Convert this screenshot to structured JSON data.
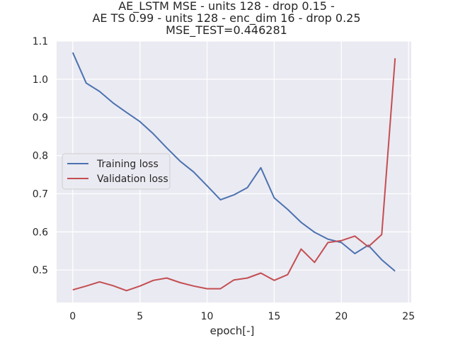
{
  "chart_data": {
    "type": "line",
    "title_lines": [
      "AE_LSTM MSE - units 128 - drop 0.15 -",
      "AE TS 0.99 - units 128 - enc_dim 16 - drop 0.25",
      "MSE_TEST=0.446281"
    ],
    "xlabel": "epoch[-]",
    "ylabel": "",
    "xlim": [
      -1.2,
      25.2
    ],
    "ylim": [
      0.415,
      1.1
    ],
    "xticks": [
      0,
      5,
      10,
      15,
      20,
      25
    ],
    "yticks": [
      0.5,
      0.6,
      0.7,
      0.8,
      0.9,
      1.0,
      1.1
    ],
    "ytick_labels": [
      "0.5",
      "0.6",
      "0.7",
      "0.8",
      "0.9",
      "1.0",
      "1.1"
    ],
    "grid": true,
    "legend_position": "center-left",
    "x": [
      0,
      1,
      2,
      3,
      4,
      5,
      6,
      7,
      8,
      9,
      10,
      11,
      12,
      13,
      14,
      15,
      16,
      17,
      18,
      19,
      20,
      21,
      22,
      23,
      24
    ],
    "series": [
      {
        "name": "Training loss",
        "color": "#4c72b0",
        "values": [
          1.07,
          0.99,
          0.968,
          0.938,
          0.913,
          0.889,
          0.857,
          0.82,
          0.785,
          0.757,
          0.721,
          0.684,
          0.697,
          0.716,
          0.768,
          0.689,
          0.659,
          0.625,
          0.599,
          0.581,
          0.572,
          0.543,
          0.565,
          0.527,
          0.497
        ]
      },
      {
        "name": "Validation loss",
        "color": "#c44e52",
        "values": [
          0.448,
          0.458,
          0.469,
          0.459,
          0.446,
          0.458,
          0.473,
          0.479,
          0.467,
          0.458,
          0.451,
          0.451,
          0.474,
          0.479,
          0.492,
          0.473,
          0.488,
          0.555,
          0.52,
          0.572,
          0.577,
          0.589,
          0.561,
          0.593,
          1.055
        ]
      }
    ]
  }
}
